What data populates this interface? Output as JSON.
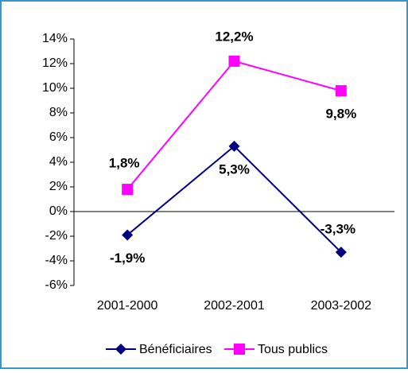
{
  "chart_data": {
    "type": "line",
    "categories": [
      "2001-2000",
      "2002-2001",
      "2003-2002"
    ],
    "series": [
      {
        "name": "Bénéficiaires",
        "color": "#000080",
        "values": [
          -1.9,
          5.3,
          -3.3
        ],
        "value_labels": [
          "-1,9%",
          "5,3%",
          "-3,3%"
        ],
        "marker": "diamond"
      },
      {
        "name": "Tous publics",
        "color": "#ff00ff",
        "values": [
          1.8,
          12.2,
          9.8
        ],
        "value_labels": [
          "1,8%",
          "12,2%",
          "9,8%"
        ],
        "marker": "square"
      }
    ],
    "ylim": [
      -6,
      14
    ],
    "yticks": [
      {
        "value": -6,
        "label": "-6%"
      },
      {
        "value": -4,
        "label": "-4%"
      },
      {
        "value": -2,
        "label": "-2%"
      },
      {
        "value": 0,
        "label": "0%"
      },
      {
        "value": 2,
        "label": "2%"
      },
      {
        "value": 4,
        "label": "4%"
      },
      {
        "value": 6,
        "label": "6%"
      },
      {
        "value": 8,
        "label": "8%"
      },
      {
        "value": 10,
        "label": "10%"
      },
      {
        "value": 12,
        "label": "12%"
      },
      {
        "value": 14,
        "label": "14%"
      }
    ],
    "grid": false,
    "legend": "bottom"
  }
}
